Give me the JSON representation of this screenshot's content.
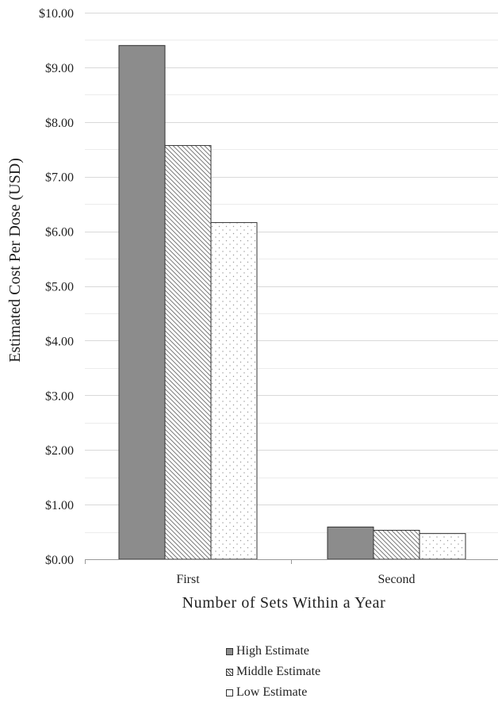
{
  "chart_data": {
    "type": "bar",
    "title": "",
    "xlabel": "Number of Sets Within a Year",
    "ylabel": "Estimated Cost Per Dose (USD)",
    "categories": [
      "First",
      "Second"
    ],
    "series": [
      {
        "name": "High Estimate",
        "values": [
          9.4,
          0.59
        ]
      },
      {
        "name": "Middle Estimate",
        "values": [
          7.57,
          0.53
        ]
      },
      {
        "name": "Low Estimate",
        "values": [
          6.16,
          0.47
        ]
      }
    ],
    "ylim": [
      0,
      10
    ],
    "yticks": [
      "$0.00",
      "$1.00",
      "$2.00",
      "$3.00",
      "$4.00",
      "$5.00",
      "$6.00",
      "$7.00",
      "$8.00",
      "$9.00",
      "$10.00"
    ],
    "grid": true,
    "legend_position": "bottom",
    "colors": {
      "high": "#8c8c8c",
      "middle_hatch": "#555555",
      "low_dots": "#aaaaaa",
      "grid": "#d9d9d9",
      "axis": "#999999"
    }
  }
}
